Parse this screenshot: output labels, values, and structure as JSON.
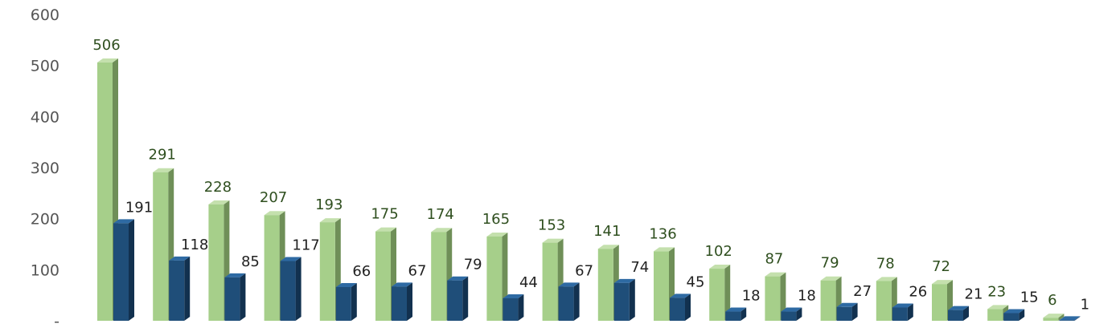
{
  "chart_data": {
    "type": "bar",
    "title": "",
    "xlabel": "",
    "ylabel": "",
    "ylim": [
      0,
      600
    ],
    "yticks": [
      0,
      100,
      200,
      300,
      400,
      500,
      600
    ],
    "ytick_labels": [
      "-",
      "100",
      "200",
      "300",
      "400",
      "500",
      "600"
    ],
    "grid": false,
    "legend": "none",
    "style": "3d-columns",
    "series": [
      {
        "color": "#a6cf8a",
        "values": [
          506,
          291,
          228,
          207,
          193,
          175,
          174,
          165,
          153,
          141,
          136,
          102,
          87,
          79,
          78,
          72,
          23,
          6
        ]
      },
      {
        "color": "#1f4e79",
        "values": [
          191,
          118,
          85,
          117,
          66,
          67,
          79,
          44,
          67,
          74,
          45,
          18,
          18,
          27,
          26,
          21,
          15,
          1
        ]
      }
    ]
  }
}
